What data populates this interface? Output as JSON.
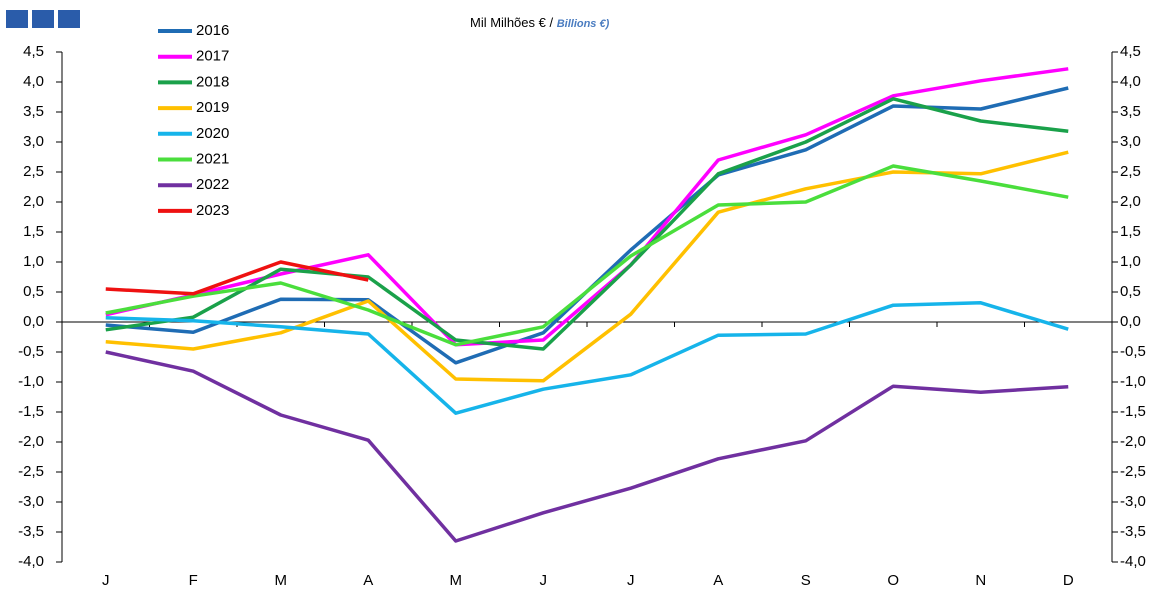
{
  "chart_data": {
    "type": "line",
    "title": "Mil Milhões € / ",
    "subtitle": "Billions €)",
    "categories": [
      "J",
      "F",
      "M",
      "A",
      "M",
      "J",
      "J",
      "A",
      "S",
      "O",
      "N",
      "D"
    ],
    "series": [
      {
        "name": "2016",
        "color": "#1f6cb4",
        "values": [
          -0.05,
          -0.17,
          0.38,
          0.37,
          -0.68,
          -0.18,
          1.2,
          2.45,
          2.87,
          3.6,
          3.55,
          3.9
        ]
      },
      {
        "name": "2017",
        "color": "#ff00ff",
        "values": [
          0.12,
          0.45,
          0.8,
          1.12,
          -0.38,
          -0.3,
          0.95,
          2.7,
          3.12,
          3.77,
          4.02,
          4.22
        ]
      },
      {
        "name": "2018",
        "color": "#1aa14a",
        "values": [
          -0.13,
          0.08,
          0.88,
          0.75,
          -0.3,
          -0.45,
          0.95,
          2.47,
          3.0,
          3.72,
          3.35,
          3.18
        ]
      },
      {
        "name": "2019",
        "color": "#ffc000",
        "values": [
          -0.33,
          -0.45,
          -0.18,
          0.35,
          -0.95,
          -0.98,
          0.13,
          1.83,
          2.22,
          2.5,
          2.47,
          2.83
        ]
      },
      {
        "name": "2020",
        "color": "#16b4ea",
        "values": [
          0.07,
          0.02,
          -0.08,
          -0.2,
          -1.52,
          -1.12,
          -0.88,
          -0.22,
          -0.2,
          0.28,
          0.32,
          -0.12
        ]
      },
      {
        "name": "2021",
        "color": "#4ade3c",
        "values": [
          0.15,
          0.43,
          0.65,
          0.2,
          -0.38,
          -0.08,
          1.1,
          1.95,
          2.0,
          2.6,
          2.35,
          2.08
        ]
      },
      {
        "name": "2022",
        "color": "#7030a0",
        "values": [
          -0.5,
          -0.82,
          -1.55,
          -1.97,
          -3.65,
          -3.18,
          -2.77,
          -2.28,
          -1.98,
          -1.07,
          -1.17,
          -1.08
        ]
      },
      {
        "name": "2023",
        "color": "#ee1111",
        "values": [
          0.55,
          0.47,
          1.0,
          0.7,
          null,
          null,
          null,
          null,
          null,
          null,
          null,
          null
        ]
      }
    ],
    "ylim": [
      -4,
      4.5
    ],
    "yticks": [
      {
        "value": 4.5,
        "label": "4,5"
      },
      {
        "value": 4,
        "label": "4,0"
      },
      {
        "value": 3.5,
        "label": "3,5"
      },
      {
        "value": 3,
        "label": "3,0"
      },
      {
        "value": 2.5,
        "label": "2,5"
      },
      {
        "value": 2,
        "label": "2,0"
      },
      {
        "value": 1.5,
        "label": "1,5"
      },
      {
        "value": 1,
        "label": "1,0"
      },
      {
        "value": 0.5,
        "label": "0,5"
      },
      {
        "value": 0,
        "label": "0,0"
      },
      {
        "value": -0.5,
        "label": "-0,5"
      },
      {
        "value": -1,
        "label": "-1,0"
      },
      {
        "value": -1.5,
        "label": "-1,5"
      },
      {
        "value": -2,
        "label": "-2,0"
      },
      {
        "value": -2.5,
        "label": "-2,5"
      },
      {
        "value": -3,
        "label": "-3,0"
      },
      {
        "value": -3.5,
        "label": "-3,5"
      },
      {
        "value": -4,
        "label": "-4,0"
      }
    ],
    "y2lim": [
      -4,
      4.5
    ],
    "y2ticks": [
      {
        "value": 4.5,
        "label": "4,5"
      },
      {
        "value": 4,
        "label": "4,0"
      },
      {
        "value": 3.5,
        "label": "3,5"
      },
      {
        "value": 3,
        "label": "3,0"
      },
      {
        "value": 2.5,
        "label": "2,5"
      },
      {
        "value": 2,
        "label": "2,0"
      },
      {
        "value": 1.5,
        "label": "1,5"
      },
      {
        "value": 1,
        "label": "1,0"
      },
      {
        "value": 0.5,
        "label": "0,5"
      },
      {
        "value": 0,
        "label": "0,0"
      },
      {
        "value": -0.5,
        "label": "-0,5"
      },
      {
        "value": -1,
        "label": "-1,0"
      },
      {
        "value": -1.5,
        "label": "-1,5"
      },
      {
        "value": -2,
        "label": "-2,0"
      },
      {
        "value": -2.5,
        "label": "-2,5"
      },
      {
        "value": -3,
        "label": "-3,0"
      },
      {
        "value": -3.5,
        "label": "-3,5"
      },
      {
        "value": -4,
        "label": "-4,0"
      }
    ],
    "grid": false,
    "legend": "upper-left"
  }
}
